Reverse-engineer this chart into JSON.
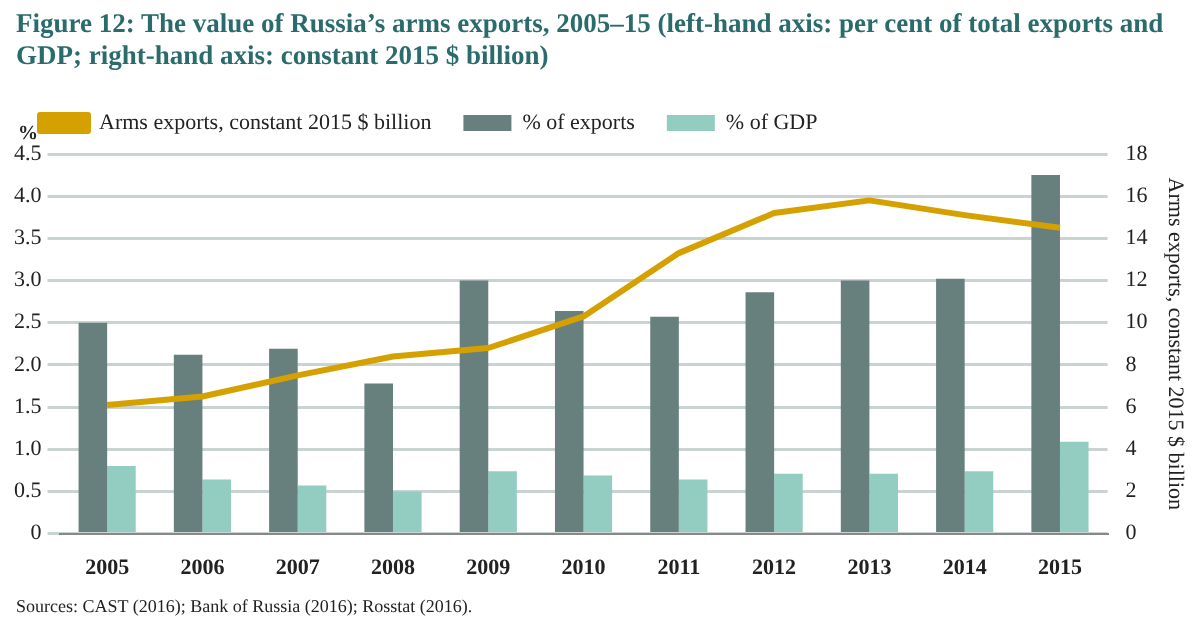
{
  "chart_data": {
    "type": "bar",
    "title": "Figure 12: The value of Russia’s arms exports, 2005–15 (left-hand axis: per cent of total exports and GDP; right-hand axis: constant 2015 $ billion)",
    "categories": [
      "2005",
      "2006",
      "2007",
      "2008",
      "2009",
      "2010",
      "2011",
      "2012",
      "2013",
      "2014",
      "2015"
    ],
    "series": [
      {
        "name": "% of exports",
        "color": "#677f7d",
        "values": [
          2.5,
          2.12,
          2.19,
          1.78,
          3.0,
          2.64,
          2.57,
          2.86,
          3.0,
          3.02,
          4.25
        ]
      },
      {
        "name": "% of GDP",
        "color": "#93ccc0",
        "values": [
          0.8,
          0.64,
          0.57,
          0.5,
          0.74,
          0.69,
          0.64,
          0.71,
          0.71,
          0.74,
          1.09
        ]
      },
      {
        "name": "Arms exports, constant 2015 $ billion",
        "type": "line",
        "axis": "y2",
        "color": "#d4a100",
        "values": [
          6.1,
          6.5,
          7.5,
          8.4,
          8.8,
          10.3,
          13.3,
          15.2,
          15.8,
          15.1,
          14.5
        ]
      }
    ],
    "ylabel": "%",
    "y2label": "Arms exports, constant 2015 $ billion",
    "ylim": [
      0,
      4.5
    ],
    "yticks": [
      0,
      {
        "value": 0.5,
        "label": "0.5"
      },
      {
        "value": 1,
        "label": "1.0"
      },
      {
        "value": 1.5,
        "label": "1.5"
      },
      {
        "value": 2,
        "label": "2.0"
      },
      {
        "value": 2.5,
        "label": "2.5"
      },
      {
        "value": 3,
        "label": "3.0"
      },
      {
        "value": 3.5,
        "label": "3.5"
      },
      {
        "value": 4,
        "label": "4.0"
      },
      {
        "value": 4.5,
        "label": "4.5"
      }
    ],
    "y2lim": [
      0,
      18
    ],
    "y2ticks": [
      0,
      2,
      4,
      6,
      8,
      10,
      12,
      14,
      16,
      18
    ],
    "grid": "y",
    "legend": "top left",
    "marker": "none",
    "annotations": [
      "Sources: CAST (2016); Bank of Russia (2016); Rosstat (2016)."
    ]
  }
}
